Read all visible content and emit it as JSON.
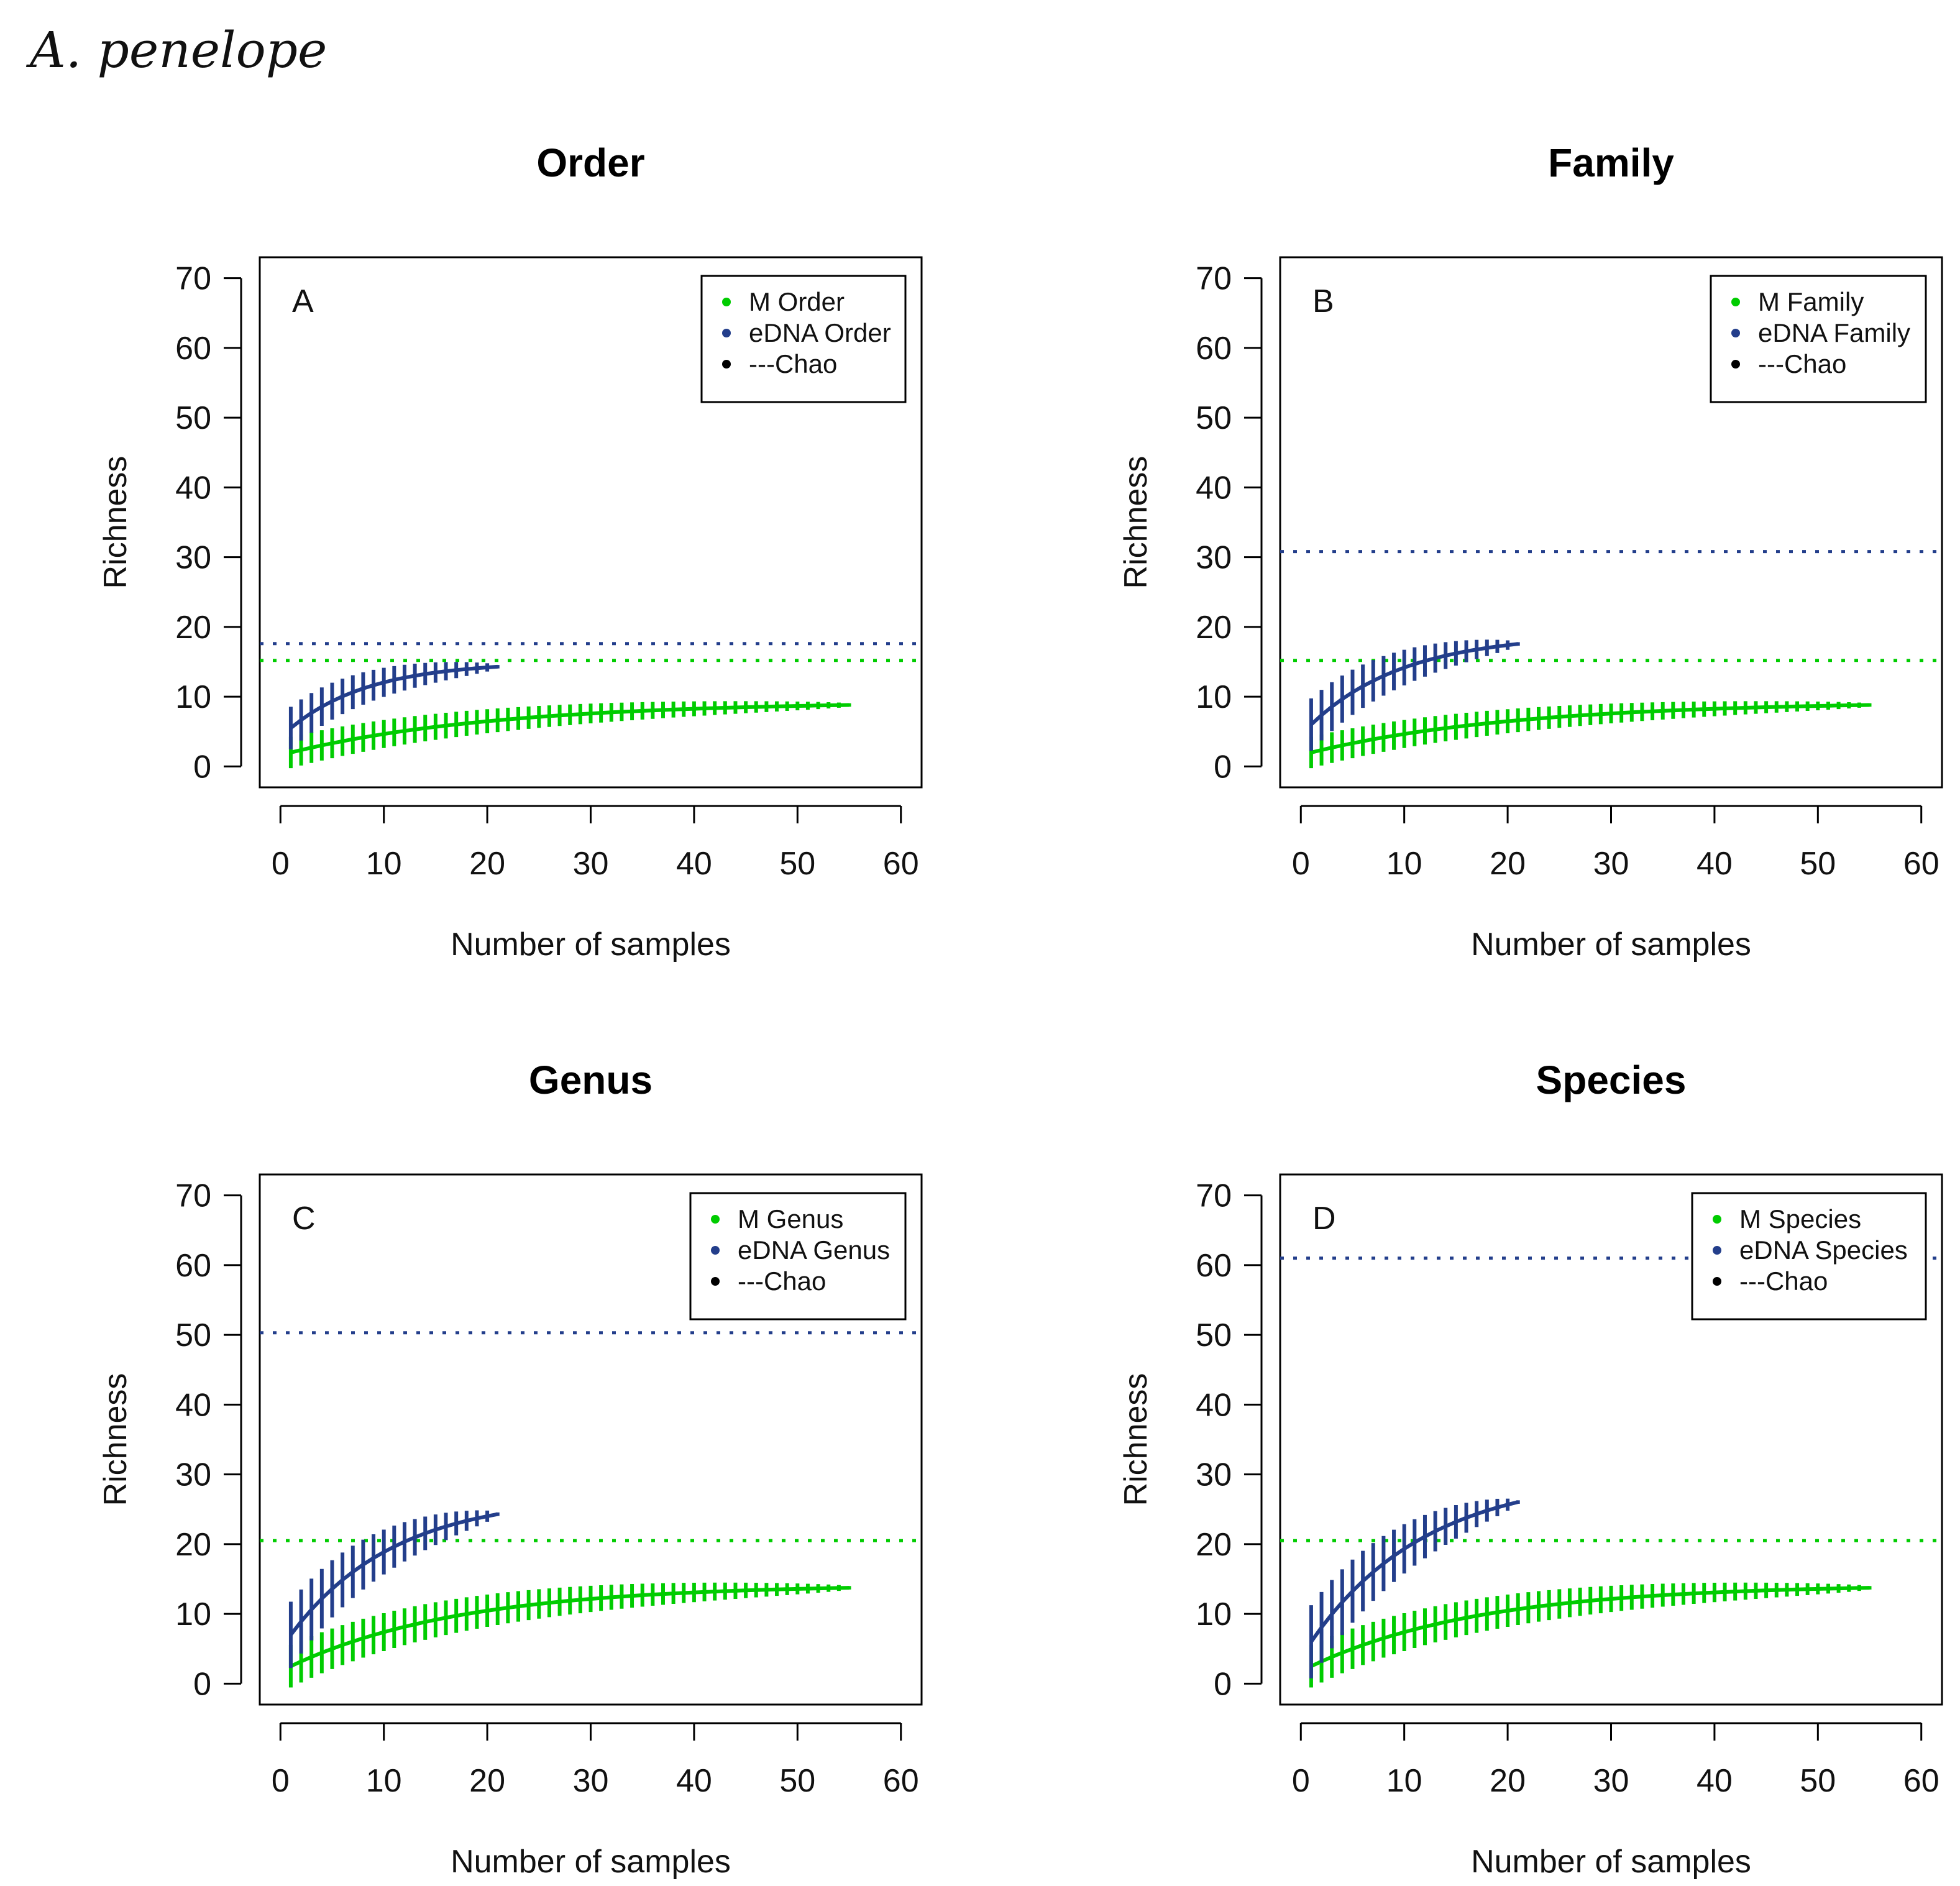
{
  "figure_title": "A. penelope",
  "colors": {
    "M": "#00cc00",
    "eDNA": "#233e8b",
    "Chao": "#000000"
  },
  "chart_data": [
    {
      "type": "line",
      "title": "Order",
      "panel_letter": "A",
      "xlabel": "Number of samples",
      "ylabel": "Richness",
      "xlim": [
        -2,
        62
      ],
      "ylim": [
        -3,
        73
      ],
      "xticks": [
        0,
        10,
        20,
        30,
        40,
        50,
        60
      ],
      "yticks": [
        0,
        10,
        20,
        30,
        40,
        50,
        60,
        70
      ],
      "legend": [
        "M Order",
        "eDNA Order",
        "---Chao"
      ],
      "legend_position": "top-right",
      "series": [
        {
          "name": "M Order",
          "n": 55,
          "asymptote": 9.3,
          "k": 0.05,
          "start": 2,
          "err": 2.0,
          "chao": 15.2
        },
        {
          "name": "eDNA Order",
          "n": 21,
          "asymptote": 15.0,
          "k": 0.13,
          "start": 5.5,
          "err": 2.8,
          "chao": 17.6
        }
      ]
    },
    {
      "type": "line",
      "title": "Family",
      "panel_letter": "B",
      "xlabel": "Number of samples",
      "ylabel": "Richness",
      "xlim": [
        -2,
        62
      ],
      "ylim": [
        -3,
        73
      ],
      "xticks": [
        0,
        10,
        20,
        30,
        40,
        50,
        60
      ],
      "yticks": [
        0,
        10,
        20,
        30,
        40,
        50,
        60,
        70
      ],
      "legend": [
        "M Family",
        "eDNA Family",
        "---Chao"
      ],
      "legend_position": "top-right",
      "series": [
        {
          "name": "M Family",
          "n": 55,
          "asymptote": 9.3,
          "k": 0.05,
          "start": 2,
          "err": 2.0,
          "chao": 15.2
        },
        {
          "name": "eDNA Family",
          "n": 21,
          "asymptote": 19.0,
          "k": 0.11,
          "start": 6,
          "err": 3.5,
          "chao": 30.8
        }
      ]
    },
    {
      "type": "line",
      "title": "Genus",
      "panel_letter": "C",
      "xlabel": "Number of samples",
      "ylabel": "Richness",
      "xlim": [
        -2,
        62
      ],
      "ylim": [
        -3,
        73
      ],
      "xticks": [
        0,
        10,
        20,
        30,
        40,
        50,
        60
      ],
      "yticks": [
        0,
        10,
        20,
        30,
        40,
        50,
        60,
        70
      ],
      "legend": [
        "M Genus",
        "eDNA Genus",
        "---Chao"
      ],
      "legend_position": "top-right",
      "series": [
        {
          "name": "M Genus",
          "n": 55,
          "asymptote": 14.2,
          "k": 0.06,
          "start": 2.5,
          "err": 2.8,
          "chao": 20.5
        },
        {
          "name": "eDNA Genus",
          "n": 21,
          "asymptote": 27.0,
          "k": 0.1,
          "start": 7,
          "err": 4.5,
          "chao": 50.3
        }
      ]
    },
    {
      "type": "line",
      "title": "Species",
      "panel_letter": "D",
      "xlabel": "Number of samples",
      "ylabel": "Richness",
      "xlim": [
        -2,
        62
      ],
      "ylim": [
        -3,
        73
      ],
      "xticks": [
        0,
        10,
        20,
        30,
        40,
        50,
        60
      ],
      "yticks": [
        0,
        10,
        20,
        30,
        40,
        50,
        60,
        70
      ],
      "legend": [
        "M Species",
        "eDNA Species",
        "---Chao"
      ],
      "legend_position": "top-right",
      "series": [
        {
          "name": "M Species",
          "n": 55,
          "asymptote": 14.2,
          "k": 0.06,
          "start": 2.5,
          "err": 2.8,
          "chao": 20.5
        },
        {
          "name": "eDNA Species",
          "n": 21,
          "asymptote": 30.0,
          "k": 0.09,
          "start": 6,
          "err": 5.0,
          "chao": 61.0
        }
      ]
    }
  ]
}
